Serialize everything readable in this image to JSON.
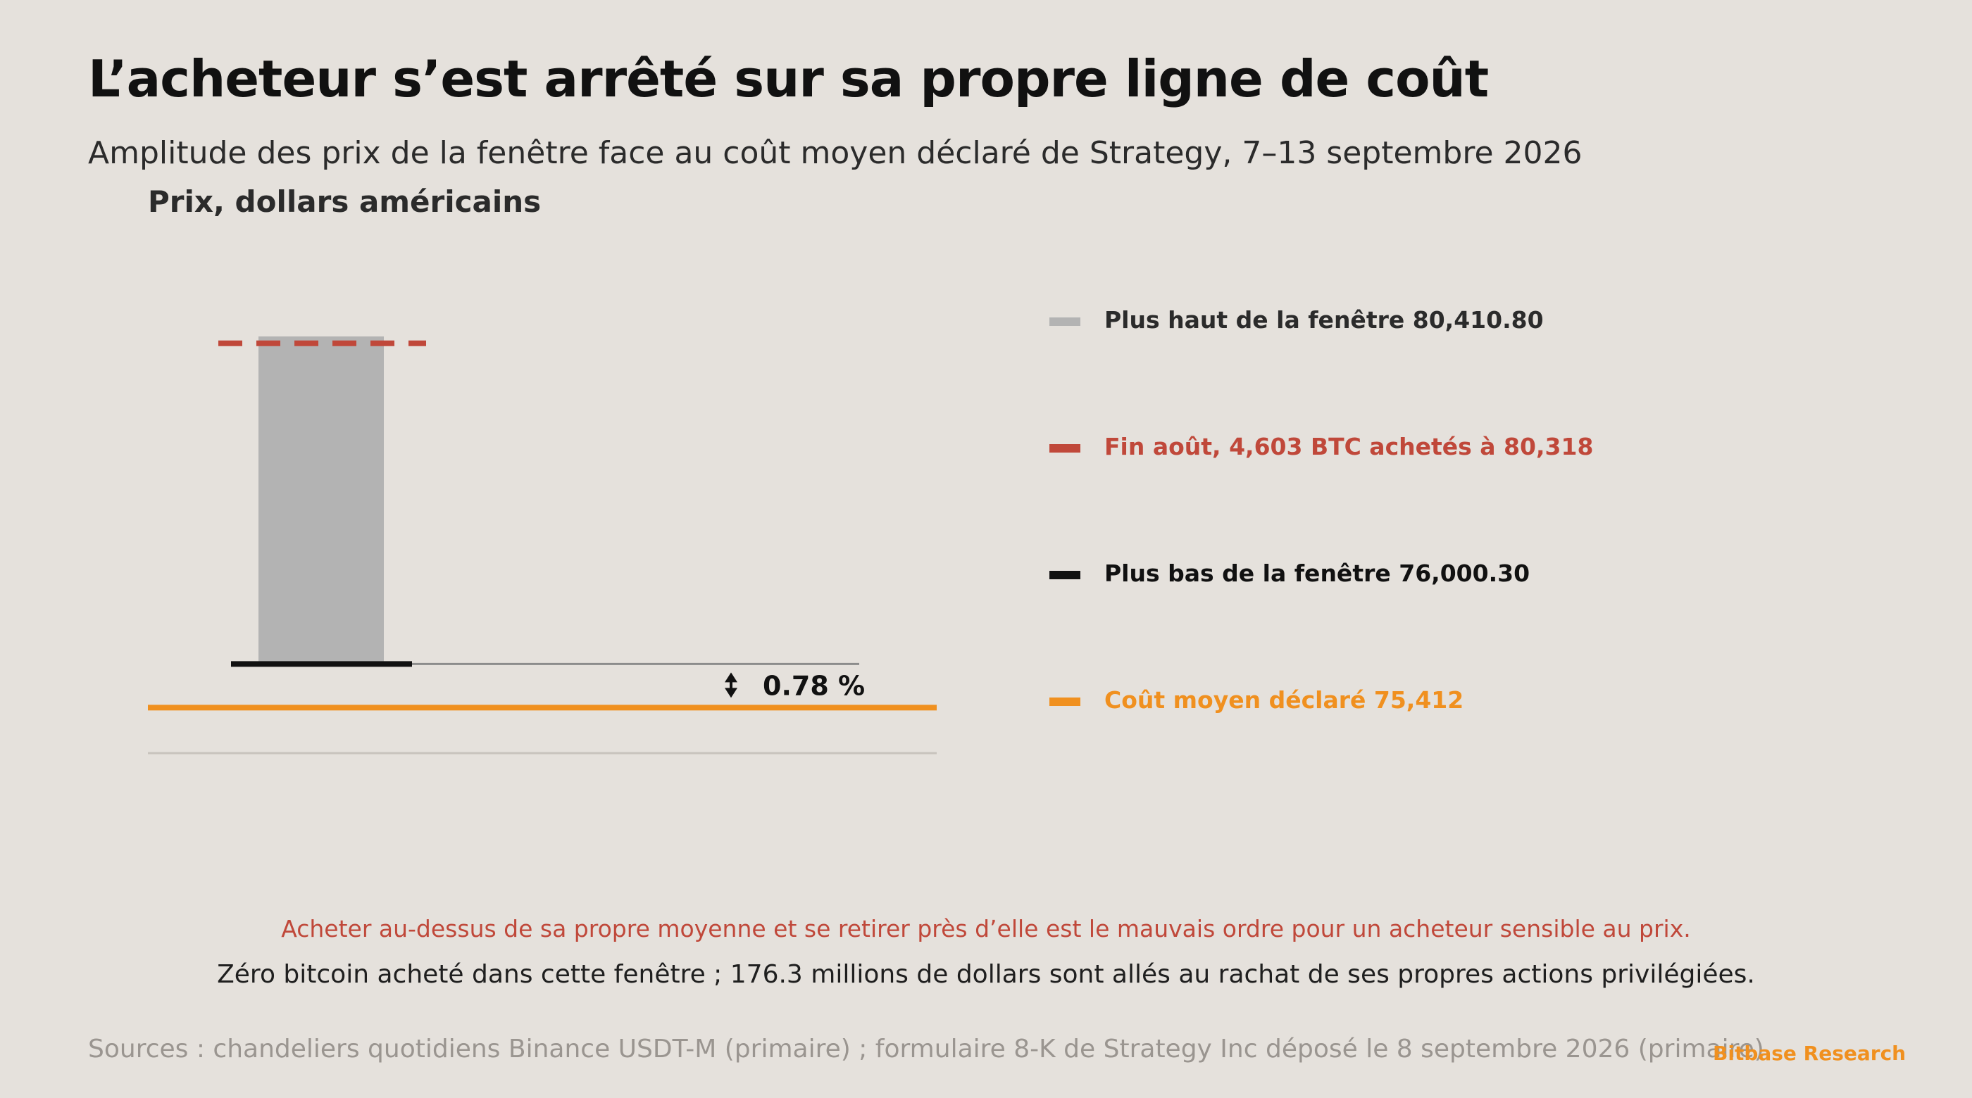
{
  "title": "L’acheteur s’est arrêté sur sa propre ligne de coût",
  "subtitle": "Amplitude des prix de la fenêtre face au coût moyen déclaré de Strategy, 7–13 septembre 2026",
  "unit_label": "Prix, dollars américains",
  "colors": {
    "background": "#e5e1dc",
    "range_bar": "#b3b3b3",
    "purchase": "#c0483a",
    "low": "#111111",
    "cost": "#f0901f",
    "connector": "#8c8c8c",
    "baseline": "#c8c3bd"
  },
  "chart_data": {
    "type": "bar",
    "categories": [
      "7–13 septembre 2026"
    ],
    "range_bar": {
      "low": 76000.3,
      "high": 80410.8
    },
    "reference_lines": [
      {
        "label": "Fin août, 4,603 BTC achetés à 80,318",
        "value": 80318,
        "style": "dashed"
      },
      {
        "label": "Plus bas de la fenêtre 76,000.30",
        "value": 76000.3,
        "style": "solid"
      },
      {
        "label": "Coût moyen déclaré 75,412",
        "value": 75412,
        "style": "solid"
      }
    ],
    "gap_annotation": {
      "text": "0.78 %",
      "icon": "double-arrow-vertical-icon"
    },
    "ylim": [
      74800,
      80410.8
    ],
    "grid": false,
    "legend_position": "right"
  },
  "legend": [
    {
      "label": "Plus haut de la fenêtre 80,410.80",
      "color": "#b3b3b3",
      "text_color": "#2b2b2b"
    },
    {
      "label": "Fin août, 4,603 BTC achetés à 80,318",
      "color": "#c0483a",
      "text_color": "#c0483a"
    },
    {
      "label": "Plus bas de la fenêtre 76,000.30",
      "color": "#111111",
      "text_color": "#111111"
    },
    {
      "label": "Coût moyen déclaré 75,412",
      "color": "#f0901f",
      "text_color": "#f0901f"
    }
  ],
  "notes": {
    "red": "Acheter au-dessus de sa propre moyenne et se retirer près d’elle est le mauvais ordre pour un acheteur sensible au prix.",
    "dark": "Zéro bitcoin acheté dans cette fenêtre ; 176.3 millions de dollars sont allés au rachat de ses propres actions privilégiées."
  },
  "sources": "Sources : chandeliers quotidiens Binance USDT-M (primaire) ; formulaire 8-K de Strategy Inc déposé le 8 septembre 2026 (primaire).",
  "brand": "Bitbase Research"
}
